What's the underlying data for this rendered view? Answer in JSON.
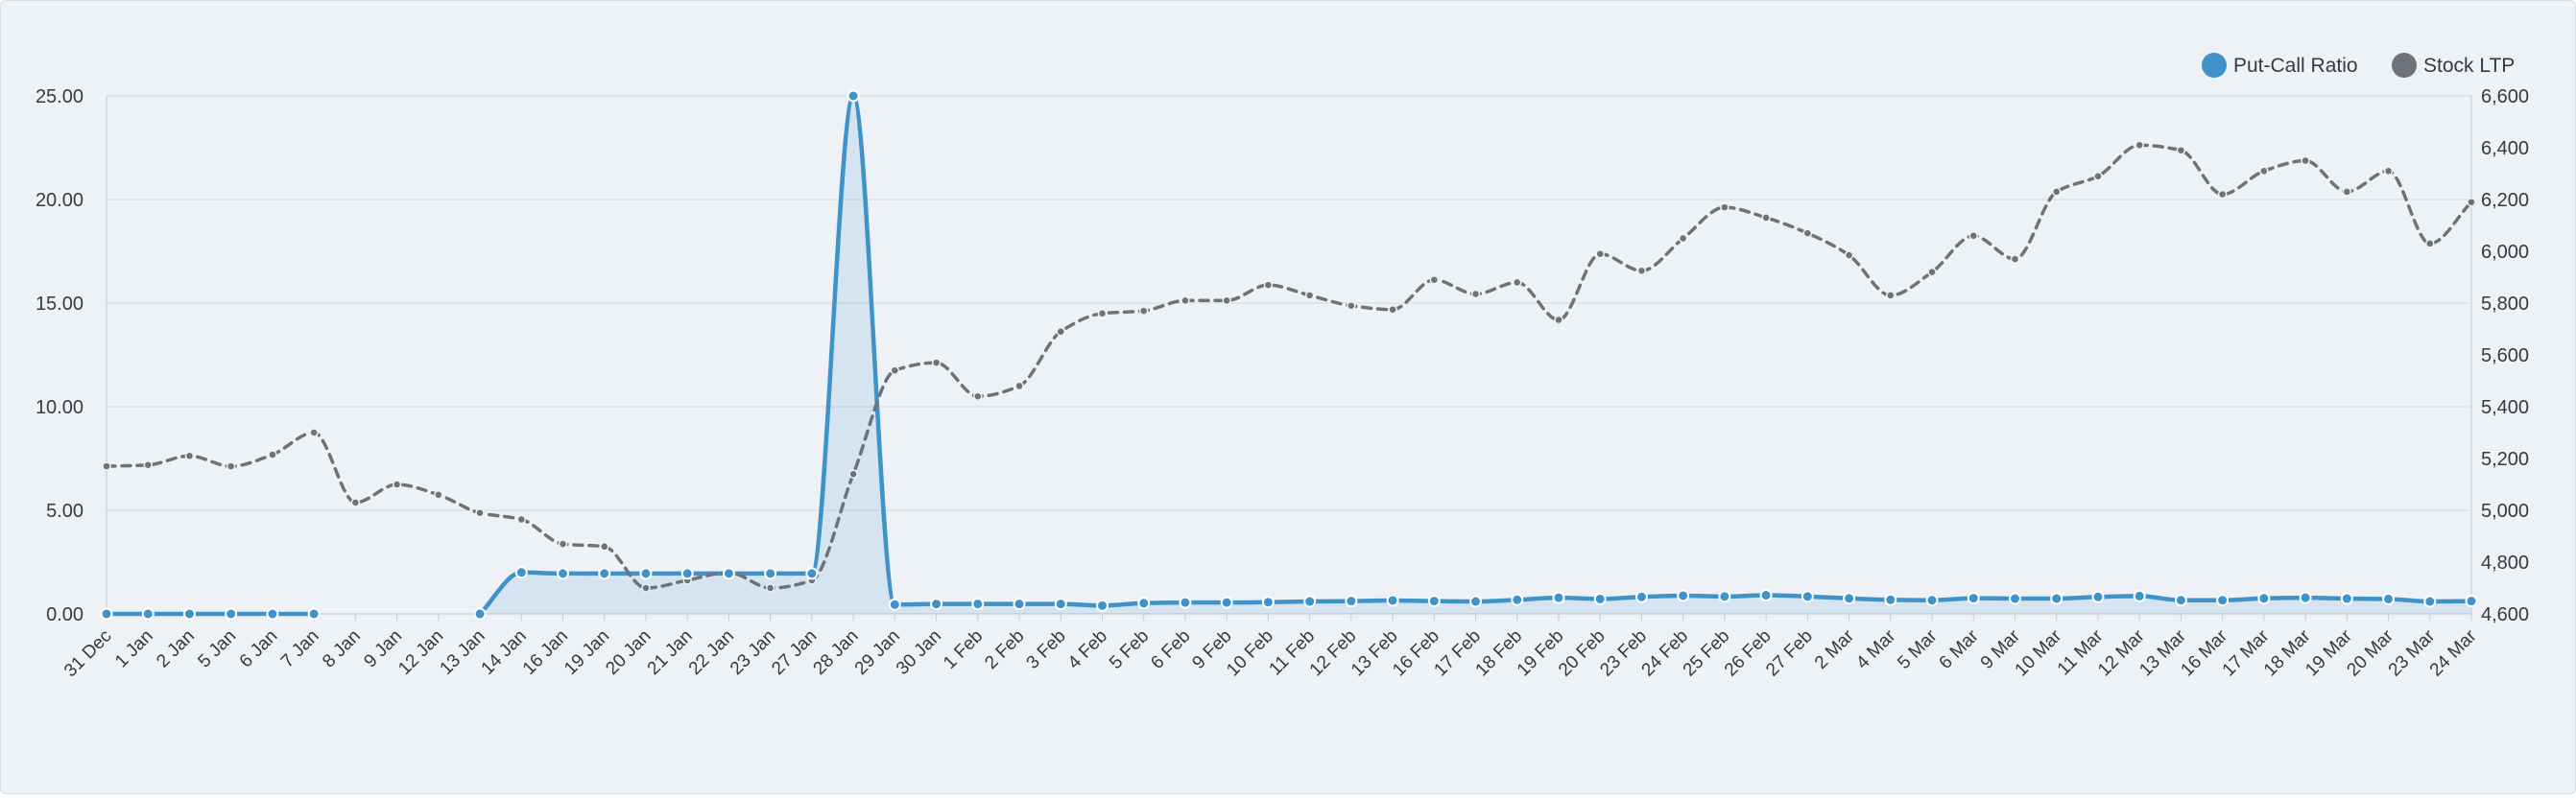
{
  "chart_data": {
    "type": "line",
    "title": "",
    "legend_position": "top-right",
    "grid": true,
    "x": [
      "31 Dec",
      "1 Jan",
      "2 Jan",
      "5 Jan",
      "6 Jan",
      "7 Jan",
      "8 Jan",
      "9 Jan",
      "12 Jan",
      "13 Jan",
      "14 Jan",
      "16 Jan",
      "19 Jan",
      "20 Jan",
      "21 Jan",
      "22 Jan",
      "23 Jan",
      "27 Jan",
      "28 Jan",
      "29 Jan",
      "30 Jan",
      "1 Feb",
      "2 Feb",
      "3 Feb",
      "4 Feb",
      "5 Feb",
      "6 Feb",
      "9 Feb",
      "10 Feb",
      "11 Feb",
      "12 Feb",
      "13 Feb",
      "16 Feb",
      "17 Feb",
      "18 Feb",
      "19 Feb",
      "20 Feb",
      "23 Feb",
      "24 Feb",
      "25 Feb",
      "26 Feb",
      "27 Feb",
      "2 Mar",
      "4 Mar",
      "5 Mar",
      "6 Mar",
      "9 Mar",
      "10 Mar",
      "11 Mar",
      "12 Mar",
      "13 Mar",
      "16 Mar",
      "17 Mar",
      "18 Mar",
      "19 Mar",
      "20 Mar",
      "23 Mar",
      "24 Mar"
    ],
    "y_left": {
      "ylim": [
        0,
        25
      ],
      "ticks": [
        "0.00",
        "5.00",
        "10.00",
        "15.00",
        "20.00",
        "25.00"
      ]
    },
    "y_right": {
      "ylim": [
        4600,
        6600
      ],
      "ticks": [
        "4,600",
        "4,800",
        "5,000",
        "5,200",
        "5,400",
        "5,600",
        "5,800",
        "6,000",
        "6,200",
        "6,400",
        "6,600"
      ]
    },
    "series": [
      {
        "name": "Put-Call Ratio",
        "axis": "left",
        "color": "#3f93c9",
        "style": "solid-area",
        "values": [
          0,
          0,
          0,
          0,
          0,
          0,
          null,
          null,
          null,
          0,
          2.0,
          1.95,
          1.95,
          1.95,
          1.95,
          1.95,
          1.95,
          1.95,
          25.0,
          0.45,
          0.48,
          0.48,
          0.48,
          0.48,
          0.4,
          0.52,
          0.55,
          0.55,
          0.57,
          0.6,
          0.62,
          0.65,
          0.62,
          0.6,
          0.68,
          0.78,
          0.72,
          0.82,
          0.88,
          0.84,
          0.9,
          0.84,
          0.75,
          0.68,
          0.66,
          0.76,
          0.74,
          0.74,
          0.82,
          0.86,
          0.66,
          0.66,
          0.75,
          0.78,
          0.74,
          0.72,
          0.6,
          0.62
        ]
      },
      {
        "name": "Stock LTP",
        "axis": "right",
        "color": "#6e737b",
        "style": "dashed",
        "values": [
          5170,
          5175,
          5210,
          5170,
          5215,
          5300,
          5030,
          5100,
          5060,
          4990,
          4965,
          4870,
          4860,
          4700,
          4730,
          4760,
          4700,
          4730,
          5140,
          5540,
          5570,
          5440,
          5480,
          5690,
          5760,
          5770,
          5810,
          5810,
          5870,
          5830,
          5790,
          5775,
          5890,
          5835,
          5880,
          5735,
          5990,
          5925,
          6050,
          6170,
          6130,
          6070,
          5985,
          5830,
          5920,
          6060,
          5970,
          6230,
          6290,
          6410,
          6390,
          6220,
          6310,
          6350,
          6230,
          6310,
          6030,
          6190
        ]
      }
    ]
  }
}
